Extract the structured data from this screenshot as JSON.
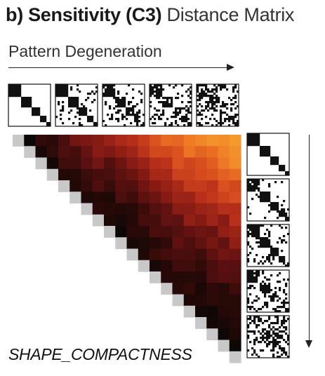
{
  "header": {
    "title_bold": "b) Sensitivity (C3)",
    "title_light": "Distance Matrix"
  },
  "axis": {
    "horizontal_label": "Pattern Degeneration",
    "metric_label": "SHAPE_COMPACTNESS"
  },
  "chart_data": {
    "type": "heatmap",
    "title": "b) Sensitivity (C3) Distance Matrix",
    "xlabel": "Pattern Degeneration",
    "matrix_label": "SHAPE_COMPACTNESS",
    "layout": "upper-triangular",
    "size": 20,
    "colormap": [
      "#0d0706",
      "#2a0a08",
      "#5a1010",
      "#8a1c14",
      "#b8301a",
      "#d94f1f",
      "#ef7a25",
      "#f59a2e"
    ],
    "value_range": [
      0,
      1
    ],
    "pattern_stages": [
      "block-diagonal",
      "slightly-degenerated",
      "moderately-degenerated",
      "highly-degenerated",
      "random-noise"
    ],
    "pattern_noise_levels": [
      0.0,
      0.15,
      0.3,
      0.45,
      0.6
    ]
  },
  "icons": {
    "horizontal_arrow": "arrow-right-icon",
    "vertical_arrow": "arrow-down-icon"
  }
}
